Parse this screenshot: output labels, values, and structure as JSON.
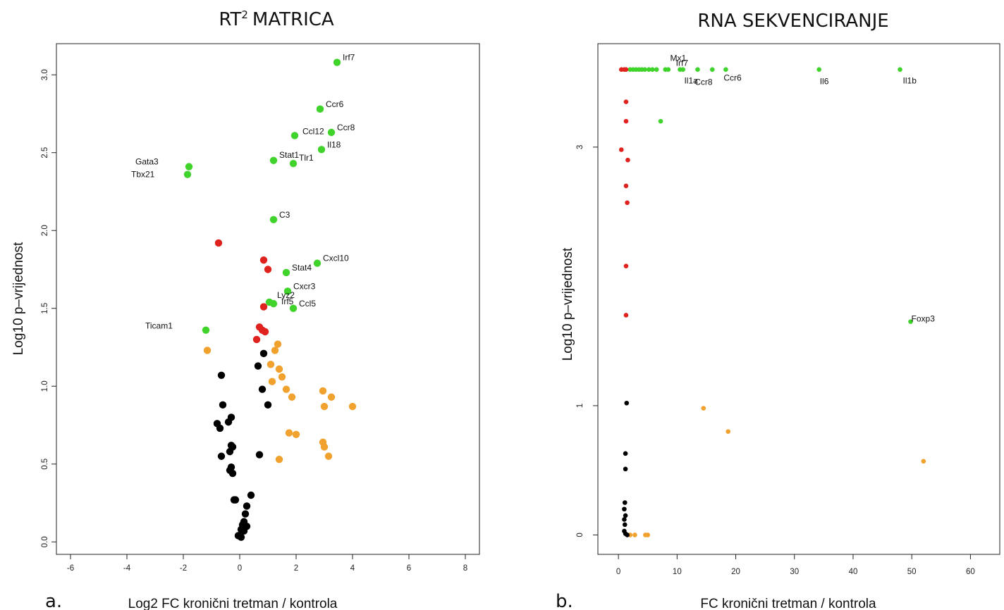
{
  "colors": {
    "red": "#e0221e",
    "green": "#3fd32b",
    "black": "#000000",
    "orange": "#f0a12e"
  },
  "chart_data": [
    {
      "type": "scatter",
      "panel_label": "a.",
      "title": "MATRICA",
      "title_prefix": "RT",
      "title_superscript": "2",
      "xlabel": "Log2 FC kronični tretman / kontrola",
      "ylabel": "Log10 p–vrijednost",
      "xlim": [
        -6.5,
        8.5
      ],
      "ylim": [
        -0.08,
        3.2
      ],
      "xticks": [
        -6,
        -4,
        -2,
        0,
        2,
        4,
        6,
        8
      ],
      "yticks": [
        0.0,
        0.5,
        1.0,
        1.5,
        2.0,
        2.5,
        3.0
      ],
      "ytick_labels": [
        "0.0",
        "0.5",
        "1.0",
        "1.5",
        "2.0",
        "2.5",
        "3.0"
      ],
      "grid": false,
      "series": [
        {
          "color": "green",
          "points": [
            {
              "x": 3.45,
              "y": 3.08,
              "label": "Irf7"
            },
            {
              "x": 2.85,
              "y": 2.78,
              "label": "Ccr6"
            },
            {
              "x": 1.95,
              "y": 2.61,
              "label": "Ccl12"
            },
            {
              "x": 3.25,
              "y": 2.63,
              "label": "Ccr8"
            },
            {
              "x": 2.9,
              "y": 2.52,
              "label": "Il18"
            },
            {
              "x": 1.2,
              "y": 2.45,
              "label": "Stat1"
            },
            {
              "x": 1.9,
              "y": 2.43,
              "label": "Tlr1"
            },
            {
              "x": -1.8,
              "y": 2.41,
              "label": "Gata3"
            },
            {
              "x": -1.85,
              "y": 2.36,
              "label": "Tbx21"
            },
            {
              "x": 1.2,
              "y": 2.07,
              "label": "C3"
            },
            {
              "x": 2.75,
              "y": 1.79,
              "label": "Cxcl10"
            },
            {
              "x": 1.65,
              "y": 1.73,
              "label": "Stat4"
            },
            {
              "x": 1.7,
              "y": 1.61,
              "label": "Cxcr3"
            },
            {
              "x": 1.05,
              "y": 1.54,
              "label": "Lyz2"
            },
            {
              "x": 1.2,
              "y": 1.53,
              "label": "Irf5"
            },
            {
              "x": 1.9,
              "y": 1.5,
              "label": "Ccl5"
            },
            {
              "x": -1.2,
              "y": 1.36,
              "label": "Ticam1"
            }
          ]
        },
        {
          "color": "red",
          "points": [
            {
              "x": -0.75,
              "y": 1.92
            },
            {
              "x": 0.85,
              "y": 1.81
            },
            {
              "x": 1.0,
              "y": 1.75
            },
            {
              "x": 0.85,
              "y": 1.51
            },
            {
              "x": 0.7,
              "y": 1.38
            },
            {
              "x": 0.8,
              "y": 1.36
            },
            {
              "x": 0.9,
              "y": 1.35
            },
            {
              "x": 0.6,
              "y": 1.3
            }
          ]
        },
        {
          "color": "orange",
          "points": [
            {
              "x": -1.15,
              "y": 1.23
            },
            {
              "x": 1.35,
              "y": 1.27
            },
            {
              "x": 1.25,
              "y": 1.23
            },
            {
              "x": 1.1,
              "y": 1.14
            },
            {
              "x": 1.4,
              "y": 1.11
            },
            {
              "x": 1.5,
              "y": 1.06
            },
            {
              "x": 1.15,
              "y": 1.03
            },
            {
              "x": 1.65,
              "y": 0.98
            },
            {
              "x": 1.85,
              "y": 0.93
            },
            {
              "x": 2.95,
              "y": 0.97
            },
            {
              "x": 3.25,
              "y": 0.93
            },
            {
              "x": 3.0,
              "y": 0.87
            },
            {
              "x": 4.0,
              "y": 0.87
            },
            {
              "x": 1.75,
              "y": 0.7
            },
            {
              "x": 2.0,
              "y": 0.69
            },
            {
              "x": 2.95,
              "y": 0.64
            },
            {
              "x": 3.0,
              "y": 0.61
            },
            {
              "x": 3.15,
              "y": 0.55
            },
            {
              "x": 1.4,
              "y": 0.53
            }
          ]
        },
        {
          "color": "black",
          "points": [
            {
              "x": 0.85,
              "y": 1.21
            },
            {
              "x": 0.65,
              "y": 1.13
            },
            {
              "x": -0.65,
              "y": 1.07
            },
            {
              "x": 0.8,
              "y": 0.98
            },
            {
              "x": -0.6,
              "y": 0.88
            },
            {
              "x": 1.0,
              "y": 0.88
            },
            {
              "x": -0.3,
              "y": 0.8
            },
            {
              "x": -0.4,
              "y": 0.77
            },
            {
              "x": -0.8,
              "y": 0.76
            },
            {
              "x": -0.7,
              "y": 0.73
            },
            {
              "x": -0.3,
              "y": 0.62
            },
            {
              "x": -0.25,
              "y": 0.61
            },
            {
              "x": -0.35,
              "y": 0.58
            },
            {
              "x": -0.65,
              "y": 0.55
            },
            {
              "x": 0.7,
              "y": 0.56
            },
            {
              "x": -0.3,
              "y": 0.48
            },
            {
              "x": -0.35,
              "y": 0.46
            },
            {
              "x": -0.25,
              "y": 0.44
            },
            {
              "x": 0.4,
              "y": 0.3
            },
            {
              "x": -0.2,
              "y": 0.27
            },
            {
              "x": -0.15,
              "y": 0.27
            },
            {
              "x": 0.25,
              "y": 0.23
            },
            {
              "x": 0.2,
              "y": 0.18
            },
            {
              "x": 0.15,
              "y": 0.13
            },
            {
              "x": 0.1,
              "y": 0.11
            },
            {
              "x": 0.25,
              "y": 0.1
            },
            {
              "x": 0.05,
              "y": 0.08
            },
            {
              "x": 0.15,
              "y": 0.07
            },
            {
              "x": -0.05,
              "y": 0.04
            },
            {
              "x": 0.05,
              "y": 0.03
            }
          ]
        }
      ]
    },
    {
      "type": "scatter",
      "panel_label": "b.",
      "title": "RNA SEKVENCIRANJE",
      "xlabel": "FC kronični tretman / kontrola",
      "ylabel": "Log10 p–vrijednost",
      "xlim": [
        -3.5,
        65
      ],
      "ylim": [
        -0.15,
        3.8
      ],
      "xticks": [
        0,
        10,
        20,
        30,
        40,
        50,
        60
      ],
      "yticks": [
        0,
        1,
        3
      ],
      "ytick_labels": [
        "0",
        "1",
        "3"
      ],
      "grid": false,
      "series": [
        {
          "color": "green",
          "points": [
            {
              "x": 2.0,
              "y": 3.6
            },
            {
              "x": 2.5,
              "y": 3.6
            },
            {
              "x": 3.0,
              "y": 3.6
            },
            {
              "x": 3.5,
              "y": 3.6
            },
            {
              "x": 4.0,
              "y": 3.6
            },
            {
              "x": 4.5,
              "y": 3.6
            },
            {
              "x": 5.2,
              "y": 3.6
            },
            {
              "x": 5.8,
              "y": 3.6
            },
            {
              "x": 6.5,
              "y": 3.6
            },
            {
              "x": 8.0,
              "y": 3.6
            },
            {
              "x": 8.5,
              "y": 3.6
            },
            {
              "x": 10.5,
              "y": 3.6,
              "label": "Mx1"
            },
            {
              "x": 11.0,
              "y": 3.6,
              "label": "Irf7"
            },
            {
              "x": 13.5,
              "y": 3.6,
              "label": "Il1a"
            },
            {
              "x": 16.0,
              "y": 3.6,
              "label": "Ccr8"
            },
            {
              "x": 18.3,
              "y": 3.6,
              "label": "Ccr6"
            },
            {
              "x": 34.2,
              "y": 3.6,
              "label": "Il6"
            },
            {
              "x": 48.0,
              "y": 3.6,
              "label": "Il1b"
            },
            {
              "x": 7.2,
              "y": 3.2
            },
            {
              "x": 49.8,
              "y": 1.65,
              "label": "Foxp3"
            }
          ]
        },
        {
          "color": "red",
          "points": [
            {
              "x": 0.5,
              "y": 3.6
            },
            {
              "x": 1.0,
              "y": 3.6
            },
            {
              "x": 1.3,
              "y": 3.6
            },
            {
              "x": 1.3,
              "y": 3.35
            },
            {
              "x": 1.3,
              "y": 3.2
            },
            {
              "x": 0.5,
              "y": 2.98
            },
            {
              "x": 1.6,
              "y": 2.9
            },
            {
              "x": 1.3,
              "y": 2.7
            },
            {
              "x": 1.5,
              "y": 2.57
            },
            {
              "x": 1.3,
              "y": 2.08
            },
            {
              "x": 1.3,
              "y": 1.7
            }
          ]
        },
        {
          "color": "orange",
          "points": [
            {
              "x": 14.5,
              "y": 0.98
            },
            {
              "x": 18.7,
              "y": 0.8
            },
            {
              "x": 52.0,
              "y": 0.57
            },
            {
              "x": 2.0,
              "y": 0.0
            },
            {
              "x": 2.8,
              "y": 0.0
            },
            {
              "x": 4.6,
              "y": 0.0
            },
            {
              "x": 5.0,
              "y": 0.0
            }
          ]
        },
        {
          "color": "black",
          "points": [
            {
              "x": 1.4,
              "y": 1.02
            },
            {
              "x": 1.2,
              "y": 0.63
            },
            {
              "x": 1.2,
              "y": 0.51
            },
            {
              "x": 1.1,
              "y": 0.25
            },
            {
              "x": 1.0,
              "y": 0.2
            },
            {
              "x": 1.2,
              "y": 0.15
            },
            {
              "x": 1.0,
              "y": 0.12
            },
            {
              "x": 1.1,
              "y": 0.08
            },
            {
              "x": 1.0,
              "y": 0.03
            },
            {
              "x": 1.2,
              "y": 0.01
            },
            {
              "x": 1.5,
              "y": 0.0
            }
          ]
        }
      ]
    }
  ]
}
